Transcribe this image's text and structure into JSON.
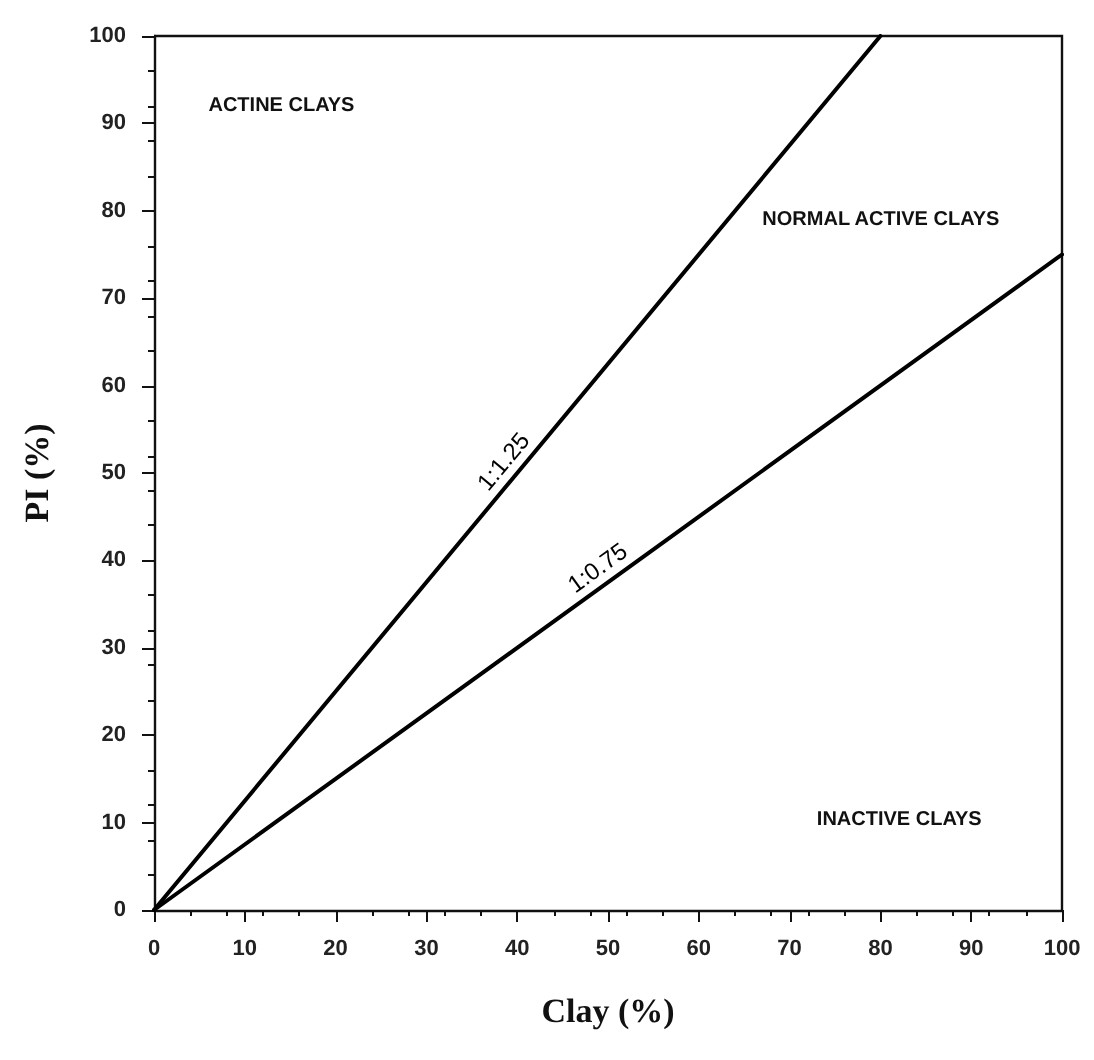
{
  "chart_data": {
    "type": "line",
    "xlabel": "Clay (%)",
    "ylabel": "PI (%)",
    "xlim": [
      0,
      100
    ],
    "xticks": [
      0,
      10,
      20,
      30,
      40,
      50,
      60,
      70,
      80,
      90,
      100
    ],
    "ylim": [
      0,
      100
    ],
    "yticks": [
      0,
      10,
      20,
      30,
      40,
      50,
      60,
      70,
      80,
      90,
      100
    ],
    "grid": false,
    "legend": false,
    "marker": "none",
    "line_style": "solid",
    "series": [
      {
        "name": "1:1.25",
        "color": "#000000",
        "x": [
          0,
          80
        ],
        "values": [
          0,
          100
        ]
      },
      {
        "name": "1:0.75",
        "color": "#000000",
        "x": [
          0,
          100
        ],
        "values": [
          0,
          75
        ]
      }
    ],
    "annotations": [
      "ACTINE CLAYS",
      "NORMAL ACTIVE CLAYS",
      "INACTIVE CLAYS"
    ]
  }
}
